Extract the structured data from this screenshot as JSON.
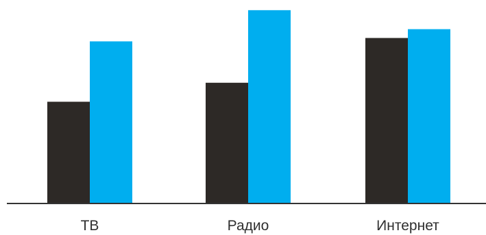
{
  "chart_data": {
    "type": "bar",
    "categories": [
      "ТВ",
      "Радио",
      "Интернет"
    ],
    "series": [
      {
        "values": [
          150,
          178,
          244
        ]
      },
      {
        "values": [
          239,
          285,
          257
        ]
      }
    ],
    "ylim": [
      0,
      300
    ],
    "grid": false,
    "legend": "none",
    "colors": [
      "#2d2926",
      "#00aeef"
    ],
    "axis_color": "#333333"
  }
}
